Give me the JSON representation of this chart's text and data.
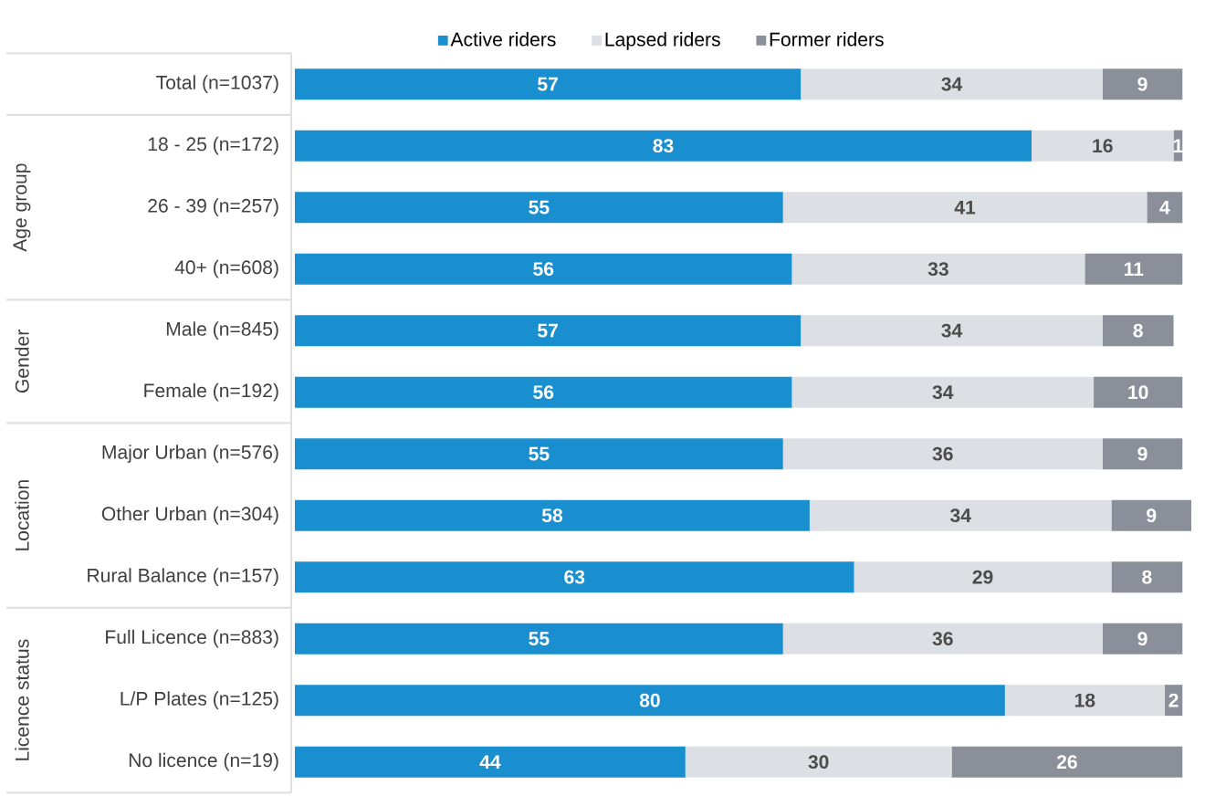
{
  "chart_data": {
    "type": "bar",
    "orientation": "horizontal",
    "stacked": true,
    "data_labels": true,
    "legend": "top",
    "categories": [
      "Total (n=1037)",
      "18 - 25 (n=172)",
      "26 - 39 (n=257)",
      "40+ (n=608)",
      "Male  (n=845)",
      "Female (n=192)",
      "Major Urban (n=576)",
      "Other Urban (n=304)",
      "Rural Balance (n=157)",
      "Full Licence (n=883)",
      "L/P Plates (n=125)",
      "No licence (n=19)"
    ],
    "series": [
      {
        "name": "Active riders",
        "color": "#1a8fd0",
        "values": [
          57,
          83,
          55,
          56,
          57,
          56,
          55,
          58,
          63,
          55,
          80,
          44
        ]
      },
      {
        "name": "Lapsed riders",
        "color": "#dcdfe3",
        "values": [
          34,
          16,
          41,
          33,
          34,
          34,
          36,
          34,
          29,
          36,
          18,
          30
        ]
      },
      {
        "name": "Former riders",
        "color": "#8a8f99",
        "values": [
          9,
          1,
          4,
          11,
          8,
          10,
          9,
          9,
          8,
          9,
          2,
          26
        ]
      }
    ],
    "annotations": [
      "Age group",
      "Gender",
      "Location",
      "Licence status"
    ]
  }
}
